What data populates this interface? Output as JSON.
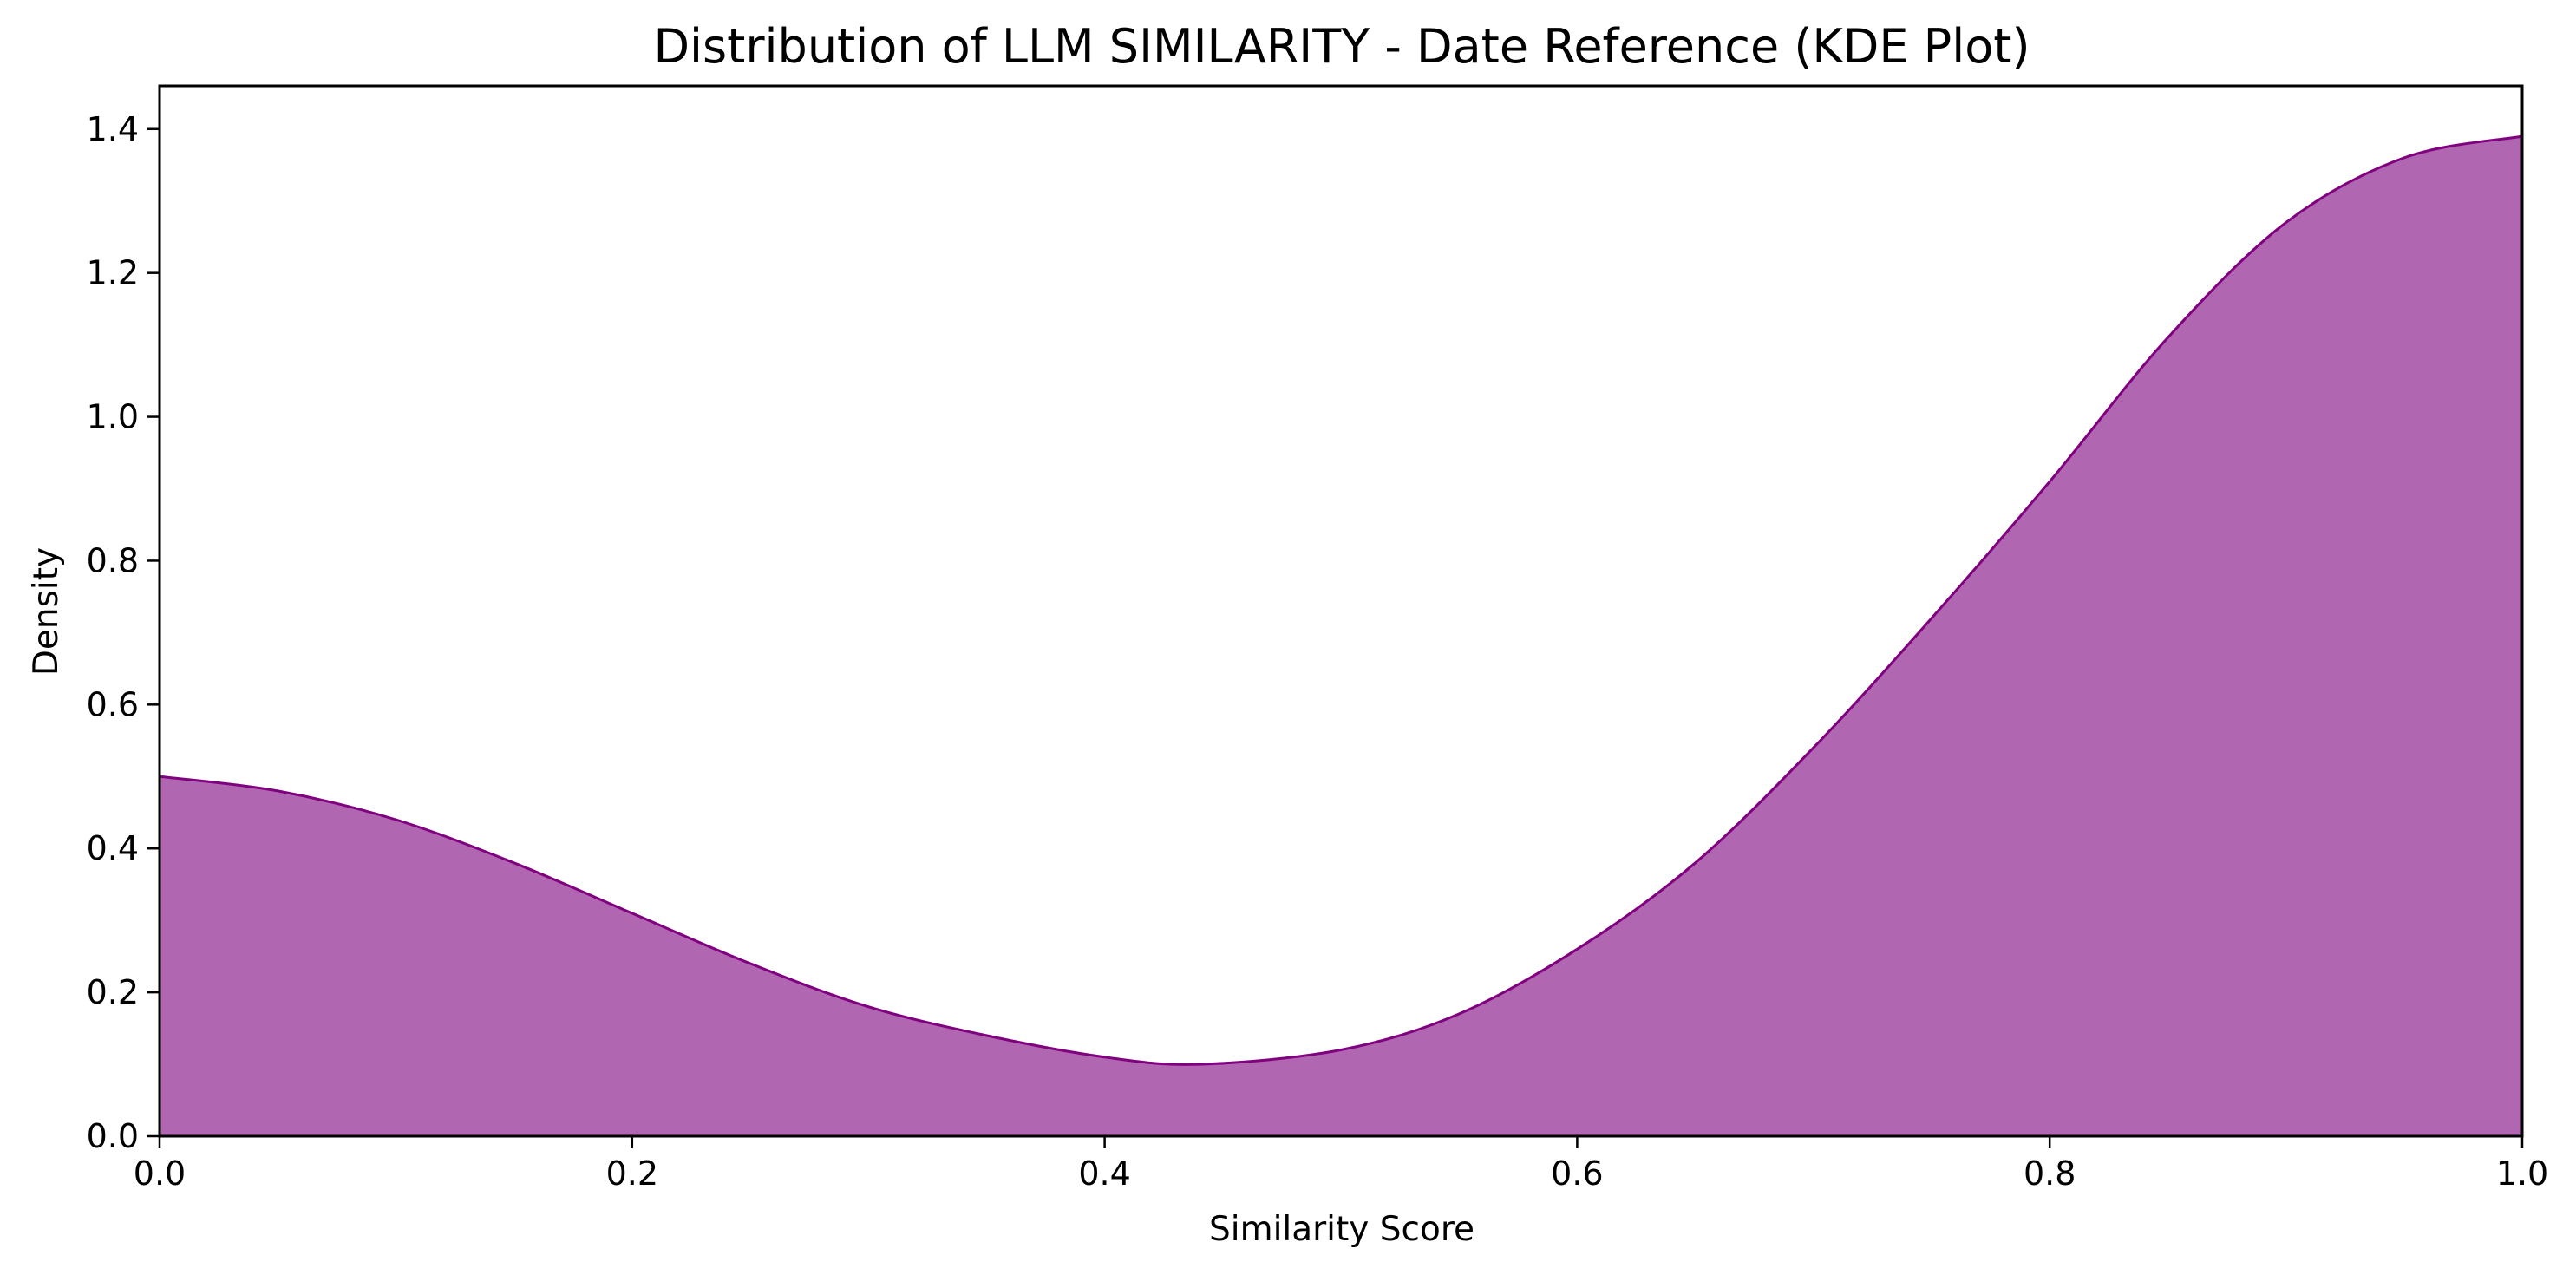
{
  "chart_data": {
    "type": "area",
    "title": "Distribution of LLM SIMILARITY - Date Reference (KDE Plot)",
    "xlabel": "Similarity Score",
    "ylabel": "Density",
    "xlim": [
      0.0,
      1.0
    ],
    "ylim": [
      0.0,
      1.46
    ],
    "xticks": [
      "0.0",
      "0.2",
      "0.4",
      "0.6",
      "0.8",
      "1.0"
    ],
    "yticks": [
      "0.0",
      "0.2",
      "0.4",
      "0.6",
      "0.8",
      "1.0",
      "1.2",
      "1.4"
    ],
    "grid": false,
    "fill_color": "#b166b1",
    "line_color": "#800080",
    "x": [
      0.0,
      0.05,
      0.1,
      0.15,
      0.2,
      0.25,
      0.3,
      0.35,
      0.4,
      0.44,
      0.5,
      0.55,
      0.6,
      0.65,
      0.7,
      0.75,
      0.8,
      0.85,
      0.9,
      0.95,
      1.0
    ],
    "y": [
      0.5,
      0.48,
      0.44,
      0.38,
      0.31,
      0.24,
      0.18,
      0.14,
      0.11,
      0.1,
      0.12,
      0.17,
      0.26,
      0.38,
      0.54,
      0.72,
      0.91,
      1.11,
      1.27,
      1.36,
      1.39
    ]
  }
}
